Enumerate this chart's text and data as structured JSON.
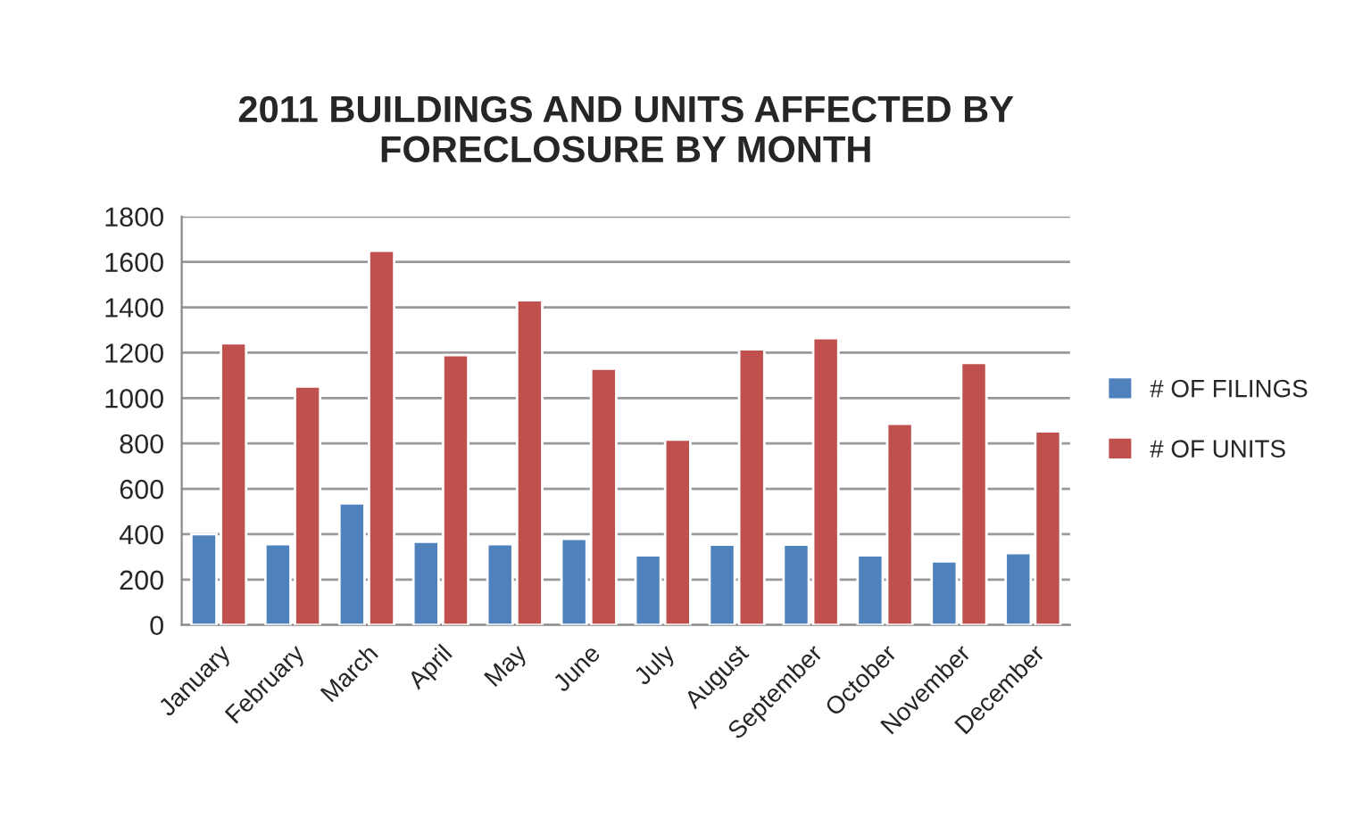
{
  "chart_data": {
    "type": "bar",
    "title": "2011 BUILDINGS AND UNITS AFFECTED BY\nFORECLOSURE BY MONTH",
    "categories": [
      "January",
      "February",
      "March",
      "April",
      "May",
      "June",
      "July",
      "August",
      "September",
      "October",
      "November",
      "December"
    ],
    "series": [
      {
        "name": "# OF FILINGS",
        "color": "#4f81bd",
        "values": [
          400,
          356,
          536,
          367,
          356,
          380,
          307,
          354,
          354,
          307,
          281,
          317
        ]
      },
      {
        "name": "# OF UNITS",
        "color": "#c0504d",
        "values": [
          1241,
          1051,
          1649,
          1189,
          1431,
          1129,
          817,
          1215,
          1264,
          887,
          1155,
          853
        ]
      }
    ],
    "ylim": [
      0,
      1800
    ],
    "yticks": [
      0,
      200,
      400,
      600,
      800,
      1000,
      1200,
      1400,
      1600,
      1800
    ],
    "grid": "y",
    "legend": "right"
  }
}
